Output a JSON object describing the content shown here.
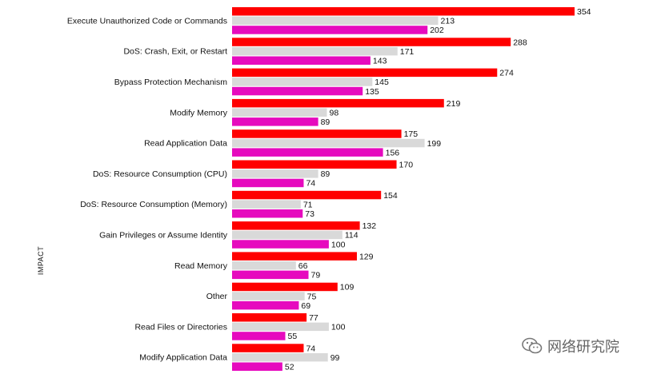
{
  "chart_data": {
    "type": "bar",
    "orientation": "horizontal",
    "ylabel": "IMPACT",
    "categories": [
      "Execute Unauthorized Code or Commands",
      "DoS: Crash, Exit, or Restart",
      "Bypass Protection Mechanism",
      "Modify Memory",
      "Read Application Data",
      "DoS: Resource Consumption (CPU)",
      "DoS: Resource Consumption (Memory)",
      "Gain Privileges or Assume Identity",
      "Read Memory",
      "Other",
      "Read Files or Directories",
      "Modify Application Data"
    ],
    "series": [
      {
        "color": "#ff0000",
        "values": [
          354,
          288,
          274,
          219,
          175,
          170,
          154,
          132,
          129,
          109,
          77,
          74
        ]
      },
      {
        "color": "#d9d9d9",
        "values": [
          213,
          171,
          145,
          98,
          199,
          89,
          71,
          114,
          66,
          75,
          100,
          99
        ]
      },
      {
        "color": "#e60abe",
        "values": [
          202,
          143,
          135,
          89,
          156,
          74,
          73,
          100,
          79,
          69,
          55,
          52
        ]
      }
    ],
    "xlim": [
      0,
      354
    ],
    "grid": false,
    "legend": "none"
  },
  "watermark": {
    "icon": "wechat-icon",
    "text": "网络研究院"
  }
}
